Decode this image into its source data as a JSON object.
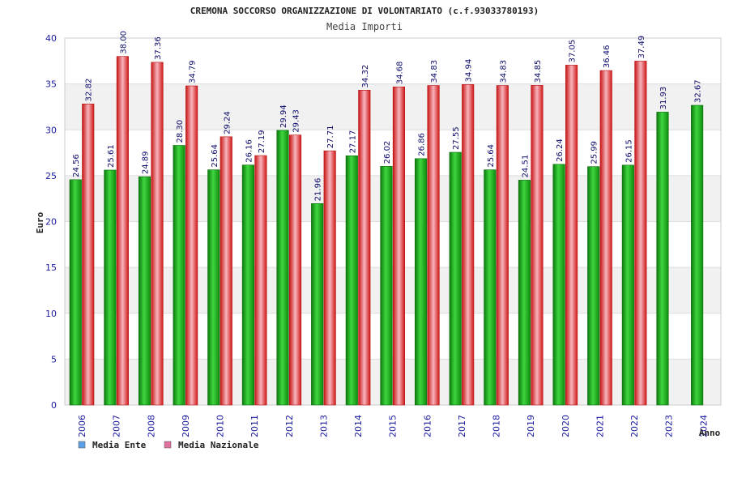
{
  "chart_data": {
    "type": "bar",
    "title": "CREMONA SOCCORSO ORGANIZZAZIONE DI VOLONTARIATO (c.f.93033780193)",
    "subtitle": "Media Importi",
    "ylabel": "Euro",
    "xlabel": "Anno",
    "ylim": [
      0,
      40
    ],
    "yticks": [
      0,
      5,
      10,
      15,
      20,
      25,
      30,
      35,
      40
    ],
    "grid": true,
    "legend_position": "bottom-left",
    "categories": [
      "2006",
      "2007",
      "2008",
      "2009",
      "2010",
      "2011",
      "2012",
      "2013",
      "2014",
      "2015",
      "2016",
      "2017",
      "2018",
      "2019",
      "2020",
      "2021",
      "2022",
      "2023",
      "2024"
    ],
    "series": [
      {
        "name": "Media Ente",
        "color": "#1fb01f",
        "legend_color": "#5aa0e6",
        "values": [
          24.56,
          25.61,
          24.89,
          28.3,
          25.64,
          26.16,
          29.94,
          21.96,
          27.17,
          26.02,
          26.86,
          27.55,
          25.64,
          24.51,
          26.24,
          25.99,
          26.15,
          31.93,
          32.67
        ],
        "labels": [
          "24.56",
          "25.61",
          "24.89",
          "28.30",
          "25.64",
          "26.16",
          "29.94",
          "21.96",
          "27.17",
          "26.02",
          "26.86",
          "27.55",
          "25.64",
          "24.51",
          "26.24",
          "25.99",
          "26.15",
          "31.93",
          "32.67"
        ]
      },
      {
        "name": "Media Nazionale",
        "color": "#e02020",
        "legend_color": "#e070a0",
        "values": [
          32.82,
          38.0,
          37.36,
          34.79,
          29.24,
          27.19,
          29.43,
          27.71,
          34.32,
          34.68,
          34.83,
          34.94,
          34.83,
          34.85,
          37.05,
          36.46,
          37.49,
          null,
          null
        ],
        "labels": [
          "32.82",
          "38.00",
          "37.36",
          "34.79",
          "29.24",
          "27.19",
          "29.43",
          "27.71",
          "34.32",
          "34.68",
          "34.83",
          "34.94",
          "34.83",
          "34.85",
          "37.05",
          "36.46",
          "37.49",
          null,
          null
        ]
      }
    ]
  }
}
